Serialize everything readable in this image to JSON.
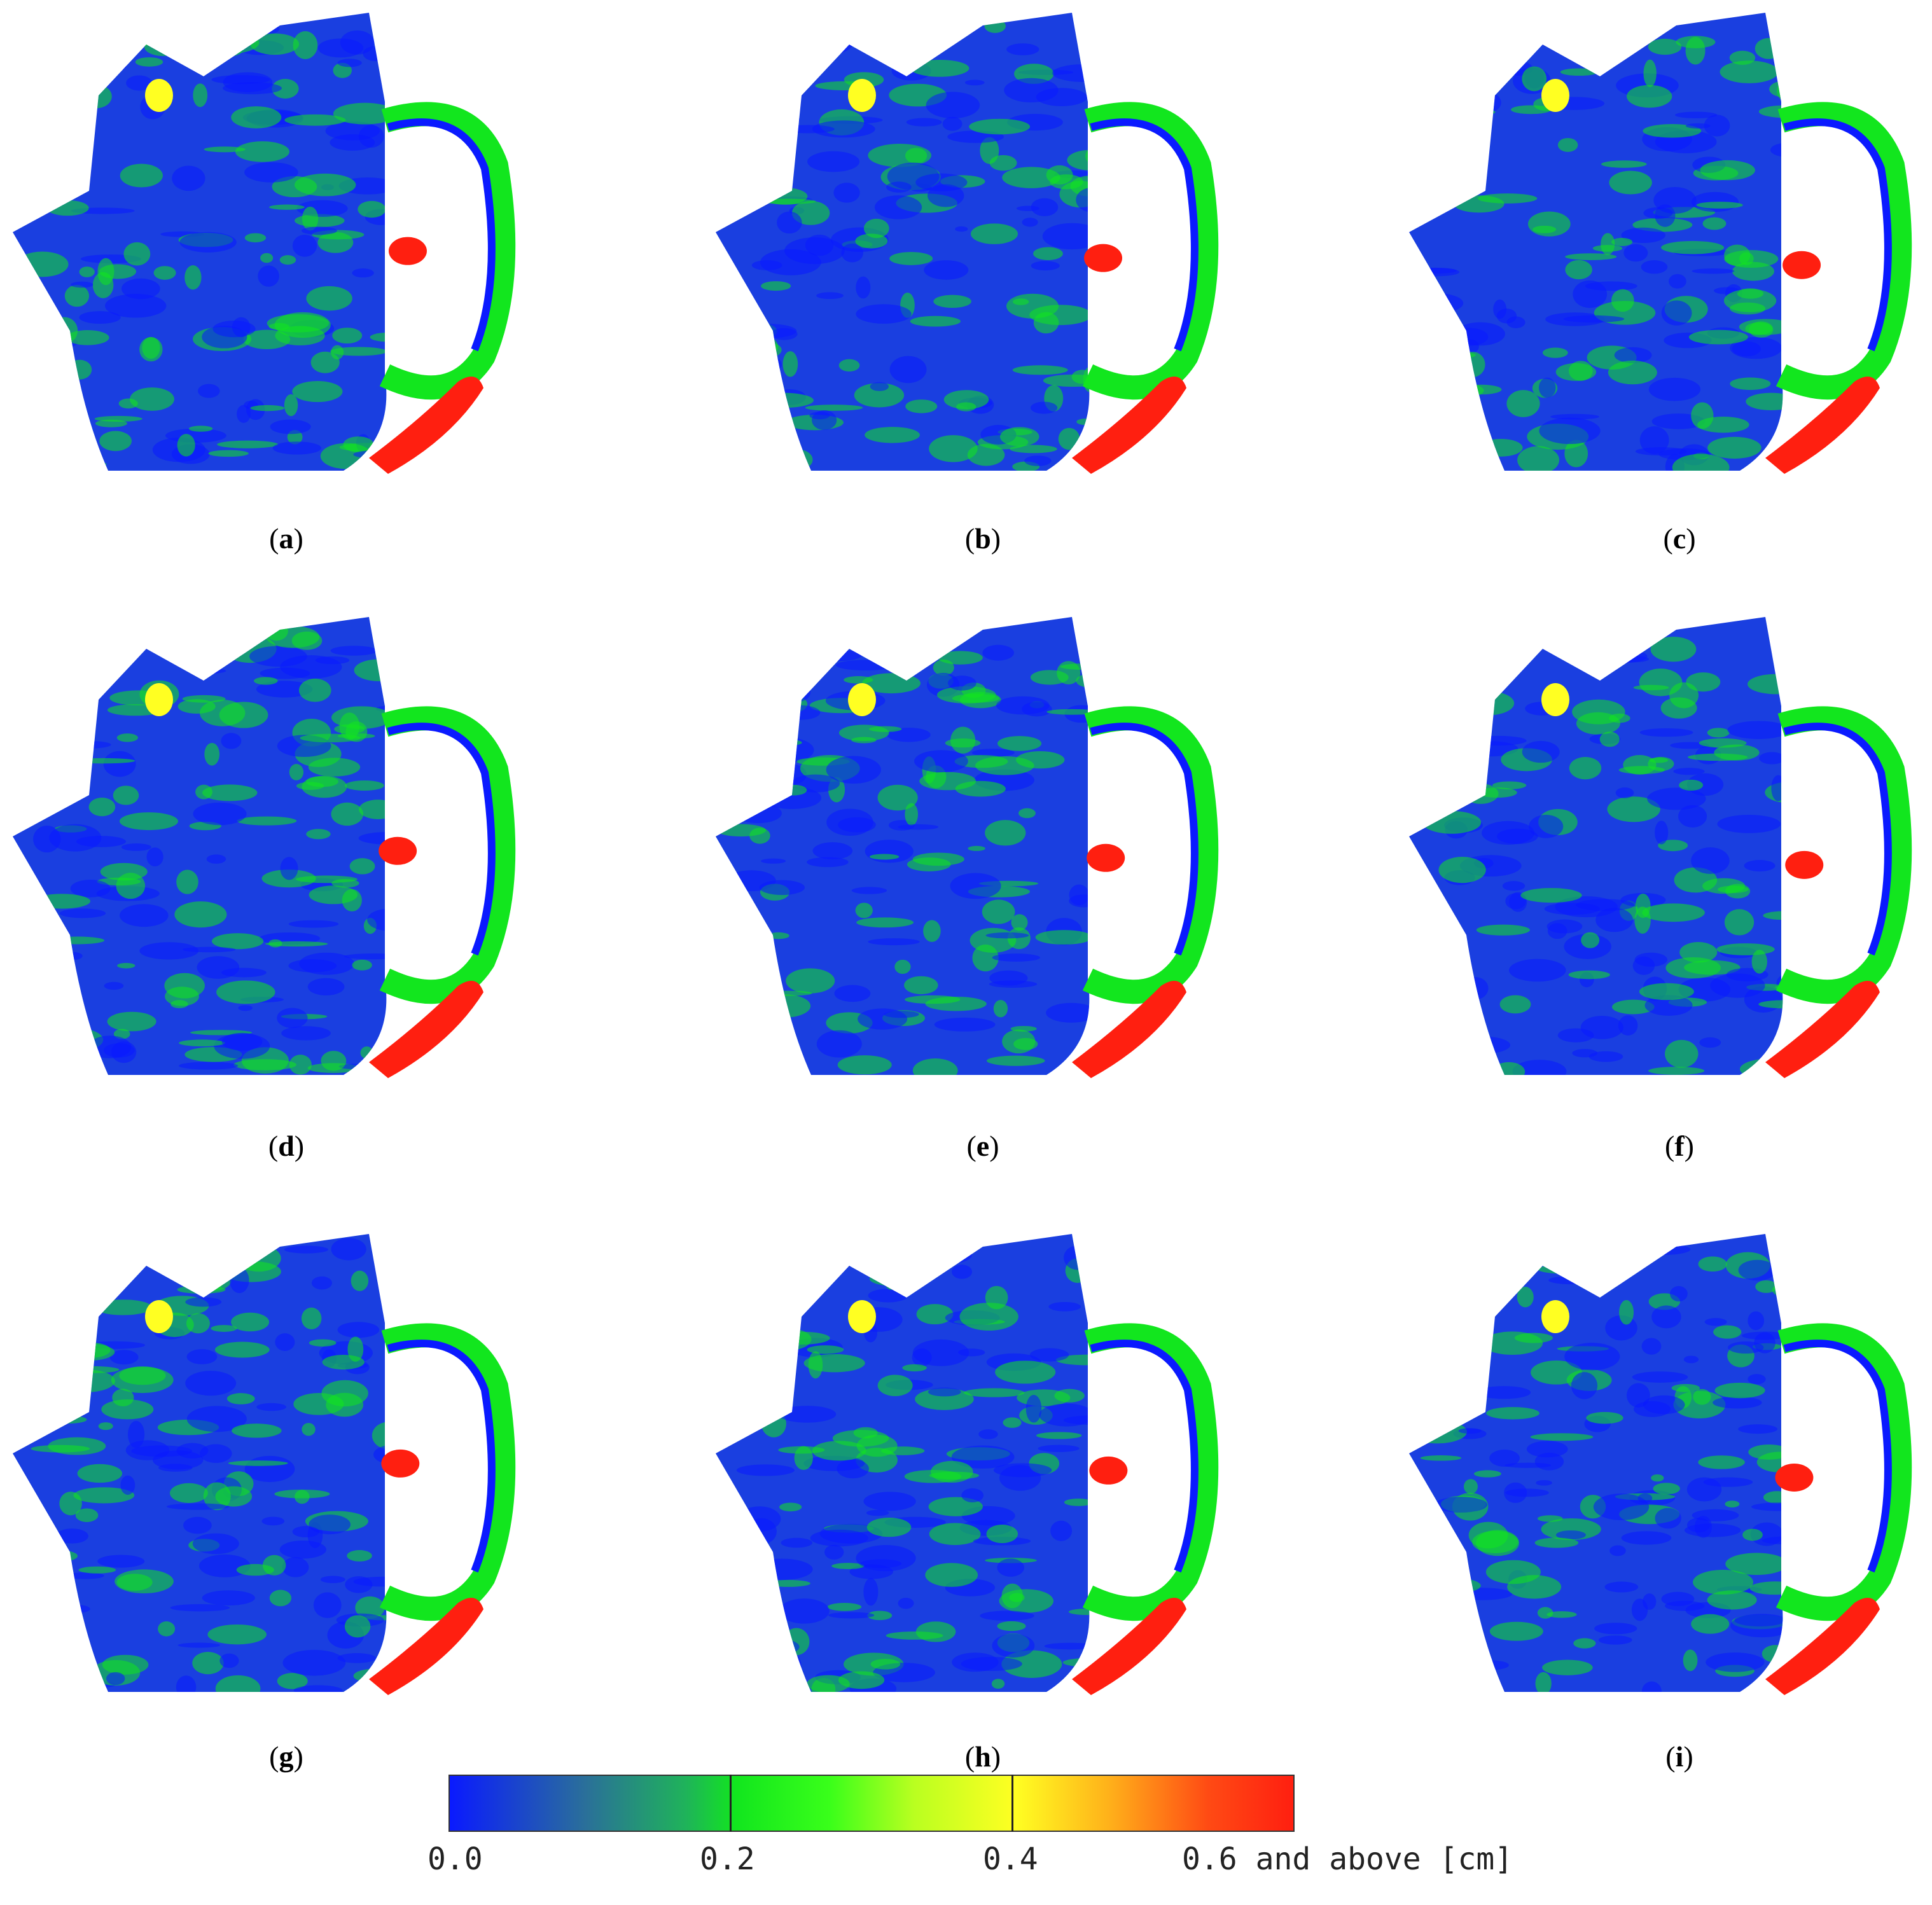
{
  "figure": {
    "panels": [
      {
        "id": "a",
        "label": "a"
      },
      {
        "id": "b",
        "label": "b"
      },
      {
        "id": "c",
        "label": "c"
      },
      {
        "id": "d",
        "label": "d"
      },
      {
        "id": "e",
        "label": "e"
      },
      {
        "id": "f",
        "label": "f"
      },
      {
        "id": "g",
        "label": "g"
      },
      {
        "id": "h",
        "label": "h"
      },
      {
        "id": "i",
        "label": "i"
      }
    ],
    "colorbar": {
      "ticks": [
        "0.0",
        "0.2",
        "0.4",
        "0.6 and above [cm]"
      ],
      "colors": [
        "#0a1aff",
        "#12e61e",
        "#ffff22",
        "#ff1f10"
      ]
    }
  }
}
